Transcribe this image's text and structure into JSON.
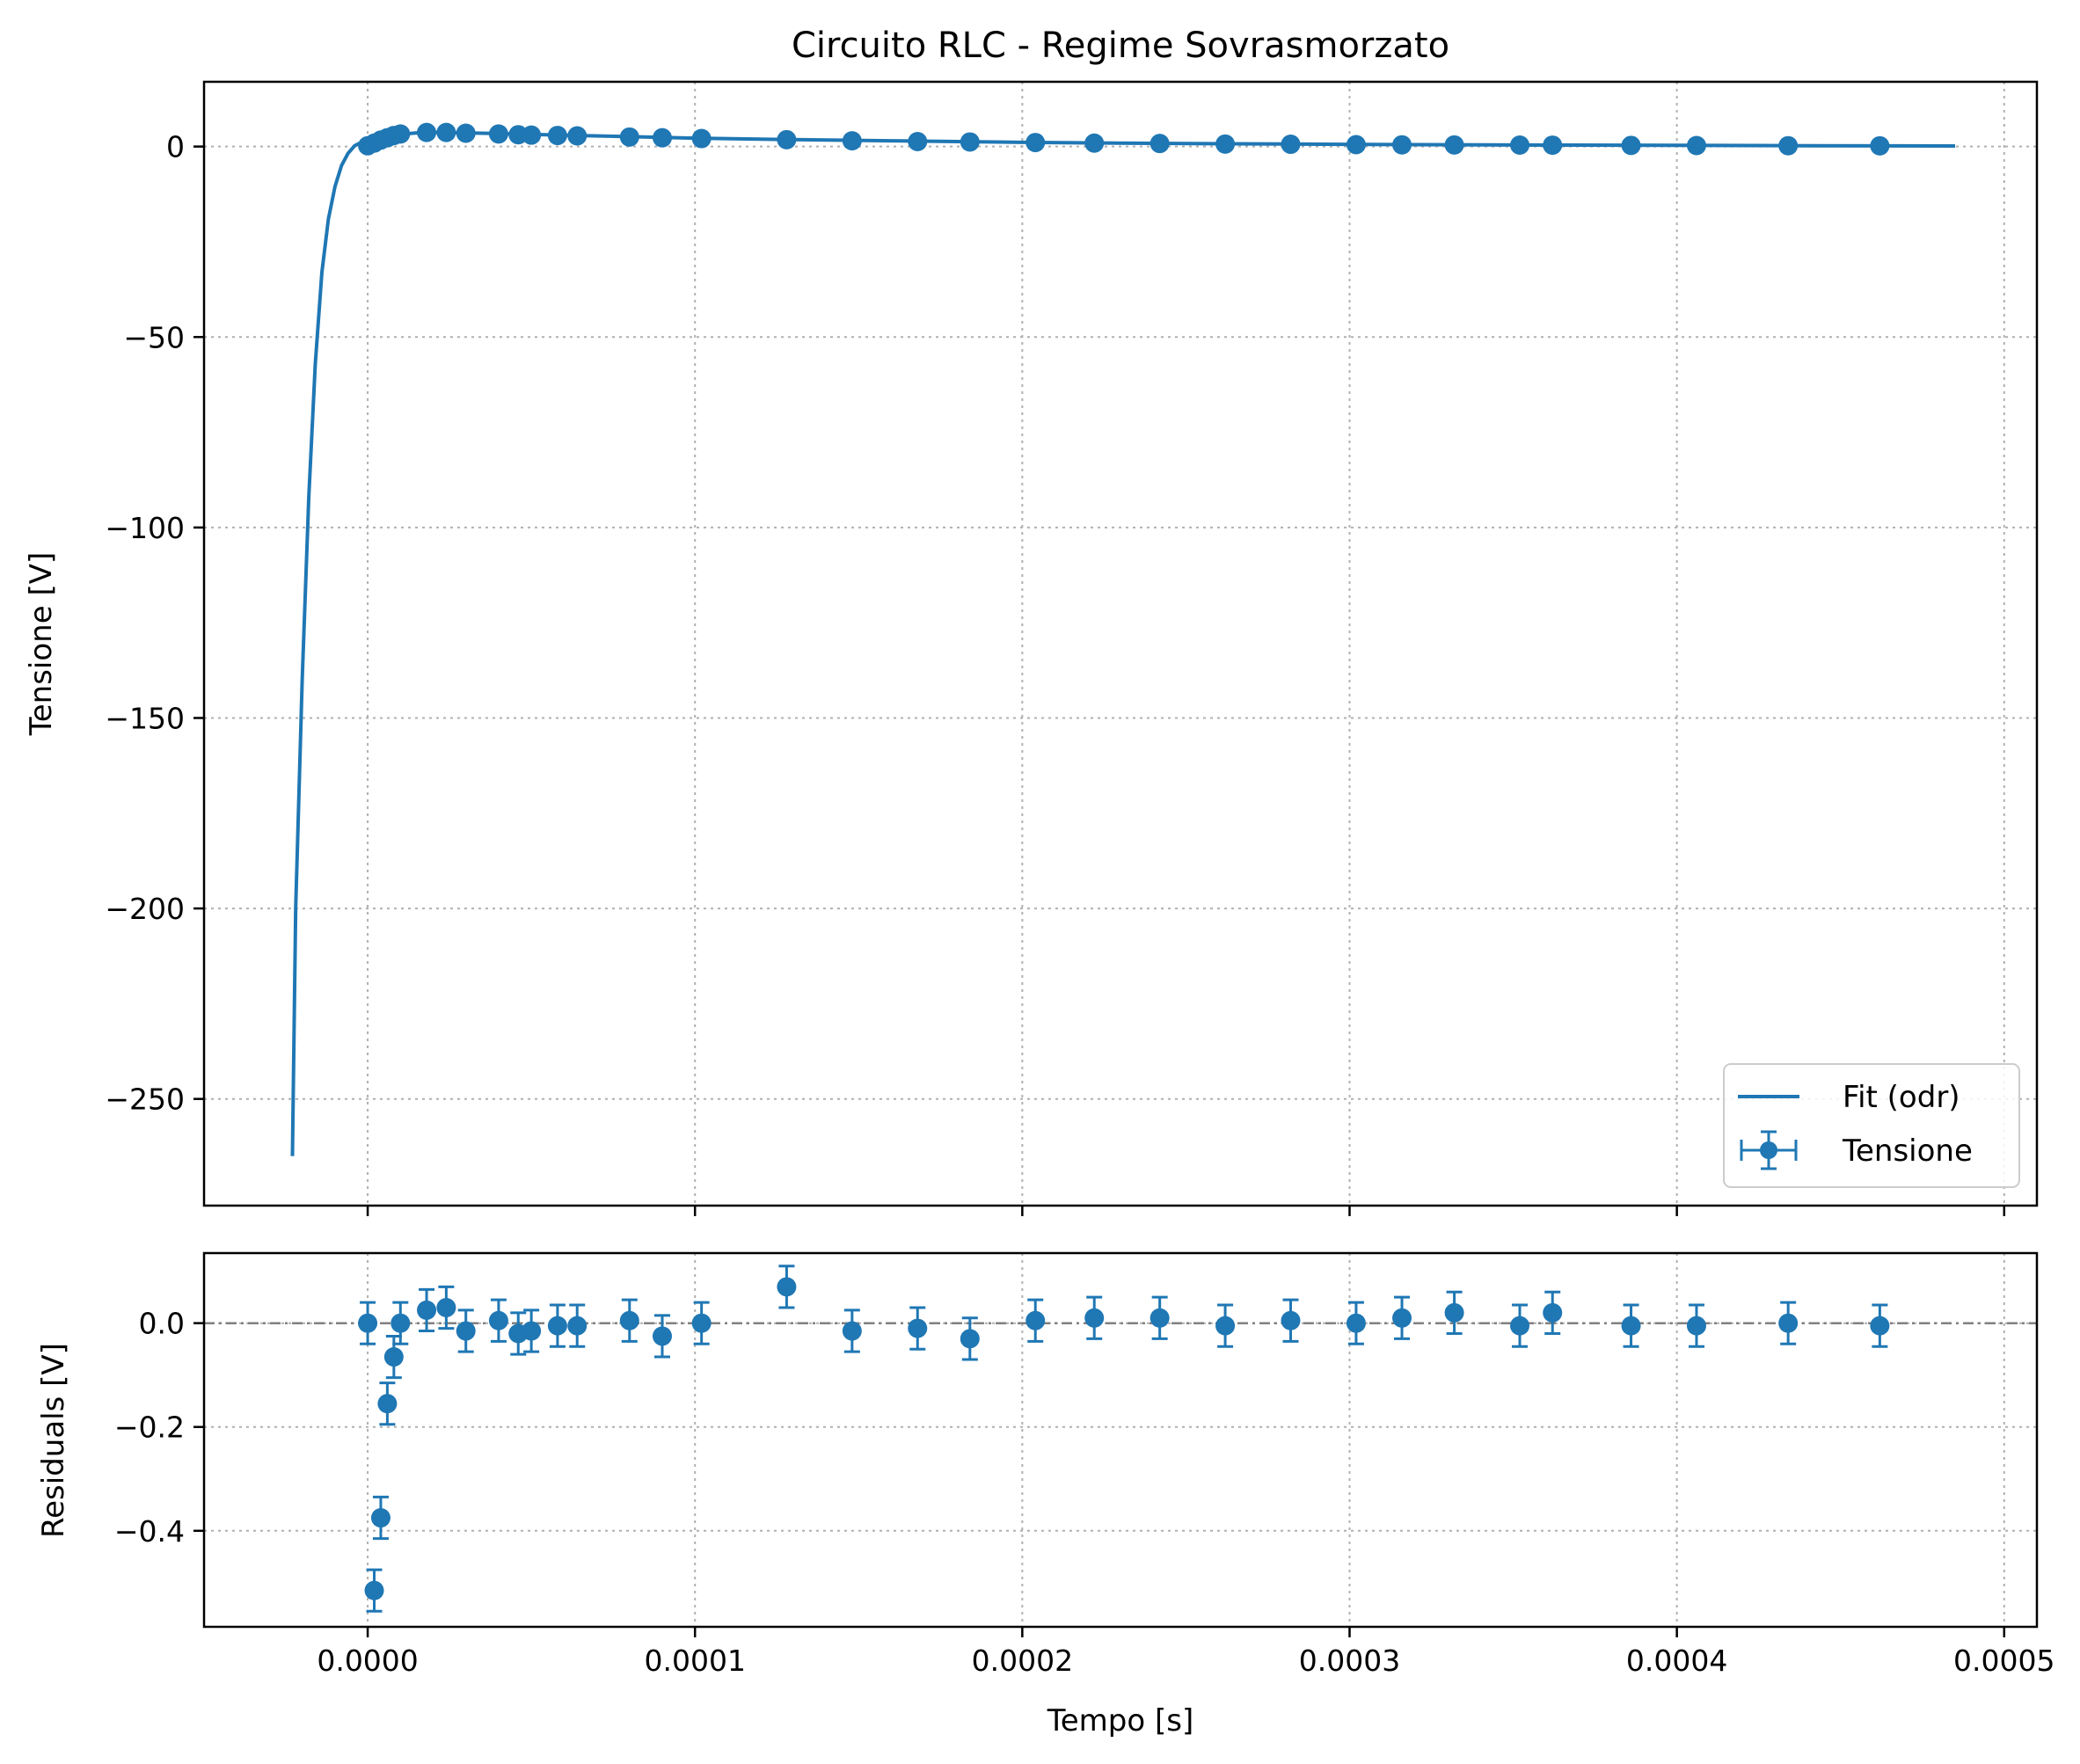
{
  "chart_data": [
    {
      "type": "line",
      "title": "Circuito RLC - Regime Sovrasmorzato",
      "xlabel": "",
      "ylabel": "Tensione [V]",
      "xlim": [
        -5e-05,
        0.00051
      ],
      "ylim": [
        -278,
        17
      ],
      "xticks": [
        0.0,
        0.0001,
        0.0002,
        0.0003,
        0.0004,
        0.0005
      ],
      "yticks": [
        0,
        -50,
        -100,
        -150,
        -200,
        -250
      ],
      "ytick_labels": [
        "0",
        "−50",
        "−100",
        "−150",
        "−200",
        "−250"
      ],
      "grid": true,
      "legend": {
        "position": "lower-right",
        "entries": [
          "Fit (odr)",
          "Tensione"
        ]
      },
      "color": "#1f77b4",
      "series": [
        {
          "name": "Fit (odr)",
          "kind": "line",
          "x": [
            -2.3e-05,
            -2.2e-05,
            -2e-05,
            -1.8e-05,
            -1.6e-05,
            -1.4e-05,
            -1.2e-05,
            -1e-05,
            -8e-06,
            -6e-06,
            -4e-06,
            -2e-06,
            0.0,
            2e-06,
            5e-06,
            1e-05,
            1.5e-05,
            2e-05,
            3e-05,
            4e-05,
            6e-05,
            8e-05,
            0.0001,
            0.00013,
            0.00016,
            0.0002,
            0.00024,
            0.00028,
            0.00032,
            0.00036,
            0.0004,
            0.00044,
            0.000485
          ],
          "y": [
            -265,
            -200,
            -140,
            -92,
            -57,
            -33,
            -19,
            -10.5,
            -5,
            -1.8,
            0.2,
            1.1,
            1.6,
            2.0,
            2.6,
            3.2,
            3.6,
            3.7,
            3.6,
            3.4,
            3.0,
            2.6,
            2.2,
            1.8,
            1.5,
            1.1,
            0.85,
            0.65,
            0.5,
            0.38,
            0.3,
            0.22,
            0.16
          ]
        },
        {
          "name": "Tensione",
          "kind": "errorbar",
          "x": [
            0.0,
            2e-06,
            4e-06,
            6e-06,
            8e-06,
            1e-05,
            1.8e-05,
            2.4e-05,
            3e-05,
            4e-05,
            4.6e-05,
            5e-05,
            5.8e-05,
            6.4e-05,
            8e-05,
            9e-05,
            0.000102,
            0.000128,
            0.000148,
            0.000168,
            0.000184,
            0.000204,
            0.000222,
            0.000242,
            0.000262,
            0.000282,
            0.000302,
            0.000316,
            0.000332,
            0.000352,
            0.000362,
            0.000386,
            0.000406,
            0.000434,
            0.000462
          ],
          "y": [
            0.2,
            0.9,
            1.7,
            2.3,
            2.9,
            3.3,
            3.7,
            3.7,
            3.5,
            3.3,
            3.1,
            3.0,
            2.9,
            2.8,
            2.5,
            2.3,
            2.1,
            1.8,
            1.5,
            1.3,
            1.2,
            1.05,
            0.9,
            0.8,
            0.65,
            0.6,
            0.5,
            0.45,
            0.42,
            0.38,
            0.36,
            0.3,
            0.27,
            0.22,
            0.19
          ]
        }
      ]
    },
    {
      "type": "scatter",
      "title": "",
      "xlabel": "Tempo [s]",
      "ylabel": "Residuals [V]",
      "xlim": [
        -5e-05,
        0.00051
      ],
      "ylim": [
        -0.585,
        0.135
      ],
      "xticks": [
        0.0,
        0.0001,
        0.0002,
        0.0003,
        0.0004,
        0.0005
      ],
      "xtick_labels": [
        "0.0000",
        "0.0001",
        "0.0002",
        "0.0003",
        "0.0004",
        "0.0005"
      ],
      "yticks": [
        0.0,
        -0.2,
        -0.4
      ],
      "ytick_labels": [
        "0.0",
        "−0.2",
        "−0.4"
      ],
      "grid": true,
      "reference_line_y": 0.0,
      "color": "#1f77b4",
      "series": [
        {
          "name": "",
          "kind": "errorbar",
          "x": [
            0.0,
            2e-06,
            4e-06,
            6e-06,
            8e-06,
            1e-05,
            1.8e-05,
            2.4e-05,
            3e-05,
            4e-05,
            4.6e-05,
            5e-05,
            5.8e-05,
            6.4e-05,
            8e-05,
            9e-05,
            0.000102,
            0.000128,
            0.000148,
            0.000168,
            0.000184,
            0.000204,
            0.000222,
            0.000242,
            0.000262,
            0.000282,
            0.000302,
            0.000316,
            0.000332,
            0.000352,
            0.000362,
            0.000386,
            0.000406,
            0.000434,
            0.000462
          ],
          "y": [
            0.0,
            -0.515,
            -0.375,
            -0.155,
            -0.065,
            0.0,
            0.025,
            0.03,
            -0.015,
            0.005,
            -0.02,
            -0.015,
            -0.005,
            -0.005,
            0.005,
            -0.025,
            0.0,
            0.07,
            -0.015,
            -0.01,
            -0.03,
            0.005,
            0.01,
            0.01,
            -0.005,
            0.005,
            0.0,
            0.01,
            0.02,
            -0.005,
            0.02,
            -0.005,
            -0.005,
            0.0,
            -0.005
          ],
          "yerr": 0.04
        }
      ]
    }
  ]
}
